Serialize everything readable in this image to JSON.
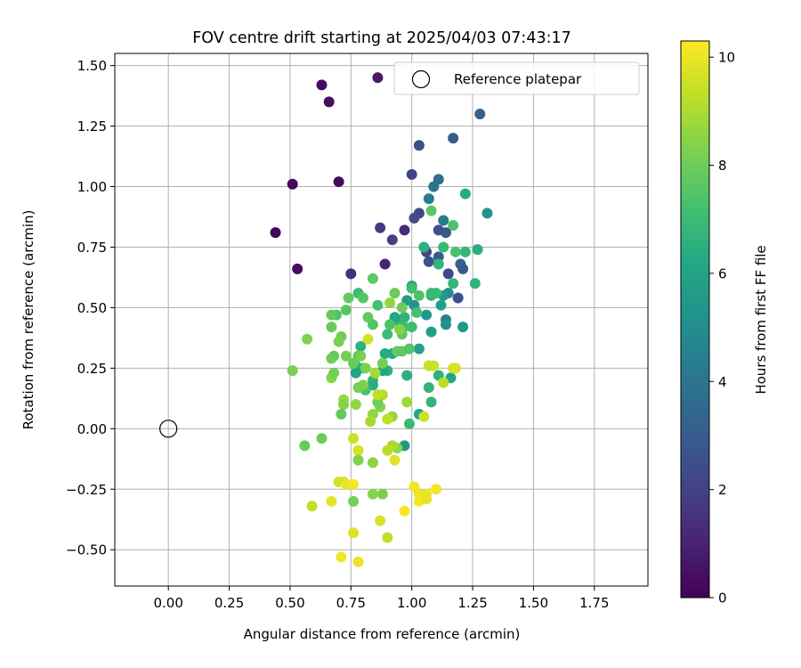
{
  "chart_data": {
    "type": "scatter",
    "title": "FOV centre drift starting at 2025/04/03 07:43:17",
    "xlabel": "Angular distance from reference (arcmin)",
    "ylabel": "Rotation from reference (arcmin)",
    "xlim": [
      -0.22,
      1.97
    ],
    "ylim": [
      -0.65,
      1.55
    ],
    "xticks": [
      "0.00",
      "0.25",
      "0.50",
      "0.75",
      "1.00",
      "1.25",
      "1.50",
      "1.75"
    ],
    "yticks": [
      "−0.50",
      "−0.25",
      "0.00",
      "0.25",
      "0.50",
      "0.75",
      "1.00",
      "1.25",
      "1.50"
    ],
    "grid": true,
    "legend": {
      "position": "top-right",
      "label": "Reference platepar"
    },
    "reference_point": {
      "x": 0.0,
      "y": 0.0
    },
    "colorbar": {
      "label": "Hours from first FF file",
      "range": [
        0,
        10.3
      ],
      "ticks": [
        "0",
        "2",
        "4",
        "6",
        "8",
        "10"
      ],
      "colormap": "viridis"
    },
    "points": [
      {
        "x": 0.63,
        "y": 1.42,
        "h": 0.3
      },
      {
        "x": 0.66,
        "y": 1.35,
        "h": 0.4
      },
      {
        "x": 0.86,
        "y": 1.45,
        "h": 0.7
      },
      {
        "x": 0.7,
        "y": 1.02,
        "h": 0.3
      },
      {
        "x": 0.51,
        "y": 1.01,
        "h": 0.2
      },
      {
        "x": 0.44,
        "y": 0.81,
        "h": 0.1
      },
      {
        "x": 0.53,
        "y": 0.66,
        "h": 0.3
      },
      {
        "x": 0.89,
        "y": 0.68,
        "h": 1.0
      },
      {
        "x": 0.75,
        "y": 0.64,
        "h": 1.4
      },
      {
        "x": 0.97,
        "y": 0.82,
        "h": 1.2
      },
      {
        "x": 0.87,
        "y": 0.83,
        "h": 1.8
      },
      {
        "x": 0.92,
        "y": 0.78,
        "h": 2.0
      },
      {
        "x": 1.28,
        "y": 1.3,
        "h": 3.2
      },
      {
        "x": 1.17,
        "y": 1.2,
        "h": 3.0
      },
      {
        "x": 1.03,
        "y": 1.17,
        "h": 2.5
      },
      {
        "x": 1.0,
        "y": 1.05,
        "h": 2.1
      },
      {
        "x": 1.11,
        "y": 1.03,
        "h": 3.7
      },
      {
        "x": 1.09,
        "y": 1.0,
        "h": 4.0
      },
      {
        "x": 1.07,
        "y": 0.95,
        "h": 4.3
      },
      {
        "x": 1.03,
        "y": 0.89,
        "h": 2.2
      },
      {
        "x": 1.01,
        "y": 0.87,
        "h": 2.4
      },
      {
        "x": 1.13,
        "y": 0.86,
        "h": 4.2
      },
      {
        "x": 1.11,
        "y": 0.82,
        "h": 2.6
      },
      {
        "x": 1.14,
        "y": 0.81,
        "h": 2.8
      },
      {
        "x": 1.06,
        "y": 0.73,
        "h": 2.3
      },
      {
        "x": 1.07,
        "y": 0.69,
        "h": 2.6
      },
      {
        "x": 1.11,
        "y": 0.71,
        "h": 3.0
      },
      {
        "x": 1.2,
        "y": 0.68,
        "h": 3.1
      },
      {
        "x": 1.21,
        "y": 0.66,
        "h": 2.9
      },
      {
        "x": 1.15,
        "y": 0.64,
        "h": 2.2
      },
      {
        "x": 1.19,
        "y": 0.54,
        "h": 2.5
      },
      {
        "x": 1.31,
        "y": 0.89,
        "h": 5.2
      },
      {
        "x": 1.22,
        "y": 0.97,
        "h": 6.3
      },
      {
        "x": 1.27,
        "y": 0.74,
        "h": 6.4
      },
      {
        "x": 1.22,
        "y": 0.73,
        "h": 6.8
      },
      {
        "x": 1.18,
        "y": 0.73,
        "h": 7.3
      },
      {
        "x": 1.26,
        "y": 0.6,
        "h": 6.6
      },
      {
        "x": 1.17,
        "y": 0.6,
        "h": 6.8
      },
      {
        "x": 1.17,
        "y": 0.84,
        "h": 7.4
      },
      {
        "x": 1.08,
        "y": 0.9,
        "h": 7.6
      },
      {
        "x": 1.05,
        "y": 0.75,
        "h": 6.5
      },
      {
        "x": 1.13,
        "y": 0.75,
        "h": 6.9
      },
      {
        "x": 1.11,
        "y": 0.68,
        "h": 6.7
      },
      {
        "x": 1.15,
        "y": 0.56,
        "h": 5.0
      },
      {
        "x": 1.13,
        "y": 0.55,
        "h": 5.5
      },
      {
        "x": 1.14,
        "y": 0.45,
        "h": 4.5
      },
      {
        "x": 1.14,
        "y": 0.43,
        "h": 5.2
      },
      {
        "x": 1.21,
        "y": 0.42,
        "h": 5.6
      },
      {
        "x": 1.08,
        "y": 0.4,
        "h": 5.8
      },
      {
        "x": 1.03,
        "y": 0.33,
        "h": 5.9
      },
      {
        "x": 1.0,
        "y": 0.59,
        "h": 6.0
      },
      {
        "x": 1.01,
        "y": 0.51,
        "h": 5.2
      },
      {
        "x": 1.03,
        "y": 0.55,
        "h": 7.4
      },
      {
        "x": 1.06,
        "y": 0.47,
        "h": 5.4
      },
      {
        "x": 1.08,
        "y": 0.55,
        "h": 6.6
      },
      {
        "x": 1.1,
        "y": 0.56,
        "h": 7.0
      },
      {
        "x": 1.12,
        "y": 0.51,
        "h": 5.8
      },
      {
        "x": 1.0,
        "y": 0.42,
        "h": 7.0
      },
      {
        "x": 0.98,
        "y": 0.53,
        "h": 5.7
      },
      {
        "x": 0.97,
        "y": 0.46,
        "h": 6.6
      },
      {
        "x": 0.97,
        "y": 0.42,
        "h": 7.3
      },
      {
        "x": 0.95,
        "y": 0.44,
        "h": 6.8
      },
      {
        "x": 0.93,
        "y": 0.46,
        "h": 6.1
      },
      {
        "x": 0.91,
        "y": 0.43,
        "h": 7.4
      },
      {
        "x": 0.9,
        "y": 0.39,
        "h": 7.0
      },
      {
        "x": 0.92,
        "y": 0.31,
        "h": 6.2
      },
      {
        "x": 0.89,
        "y": 0.31,
        "h": 6.3
      },
      {
        "x": 0.9,
        "y": 0.24,
        "h": 6.6
      },
      {
        "x": 0.88,
        "y": 0.24,
        "h": 6.0
      },
      {
        "x": 0.84,
        "y": 0.2,
        "h": 6.9
      },
      {
        "x": 0.84,
        "y": 0.18,
        "h": 6.4
      },
      {
        "x": 0.81,
        "y": 0.16,
        "h": 7.3
      },
      {
        "x": 0.79,
        "y": 0.34,
        "h": 6.6
      },
      {
        "x": 0.78,
        "y": 0.3,
        "h": 7.6
      },
      {
        "x": 0.77,
        "y": 0.26,
        "h": 6.8
      },
      {
        "x": 0.8,
        "y": 0.25,
        "h": 6.4
      },
      {
        "x": 0.77,
        "y": 0.23,
        "h": 6.1
      },
      {
        "x": 0.78,
        "y": 0.56,
        "h": 7.0
      },
      {
        "x": 0.74,
        "y": 0.54,
        "h": 7.8
      },
      {
        "x": 0.8,
        "y": 0.54,
        "h": 7.5
      },
      {
        "x": 0.84,
        "y": 0.62,
        "h": 7.7
      },
      {
        "x": 0.86,
        "y": 0.51,
        "h": 7.2
      },
      {
        "x": 0.82,
        "y": 0.46,
        "h": 7.8
      },
      {
        "x": 0.84,
        "y": 0.43,
        "h": 7.5
      },
      {
        "x": 0.73,
        "y": 0.49,
        "h": 7.6
      },
      {
        "x": 0.69,
        "y": 0.47,
        "h": 7.4
      },
      {
        "x": 0.67,
        "y": 0.47,
        "h": 7.8
      },
      {
        "x": 0.67,
        "y": 0.42,
        "h": 7.9
      },
      {
        "x": 0.71,
        "y": 0.38,
        "h": 8.0
      },
      {
        "x": 0.7,
        "y": 0.36,
        "h": 8.2
      },
      {
        "x": 0.68,
        "y": 0.3,
        "h": 7.8
      },
      {
        "x": 0.67,
        "y": 0.29,
        "h": 8.0
      },
      {
        "x": 0.73,
        "y": 0.3,
        "h": 8.1
      },
      {
        "x": 0.76,
        "y": 0.27,
        "h": 7.9
      },
      {
        "x": 0.79,
        "y": 0.3,
        "h": 8.2
      },
      {
        "x": 0.81,
        "y": 0.25,
        "h": 8.3
      },
      {
        "x": 0.88,
        "y": 0.27,
        "h": 8.1
      },
      {
        "x": 0.94,
        "y": 0.32,
        "h": 7.9
      },
      {
        "x": 0.96,
        "y": 0.32,
        "h": 7.7
      },
      {
        "x": 0.99,
        "y": 0.33,
        "h": 7.5
      },
      {
        "x": 0.96,
        "y": 0.39,
        "h": 7.8
      },
      {
        "x": 0.95,
        "y": 0.41,
        "h": 8.4
      },
      {
        "x": 0.91,
        "y": 0.52,
        "h": 8.6
      },
      {
        "x": 0.93,
        "y": 0.56,
        "h": 7.9
      },
      {
        "x": 0.96,
        "y": 0.5,
        "h": 8.0
      },
      {
        "x": 1.0,
        "y": 0.58,
        "h": 7.1
      },
      {
        "x": 1.02,
        "y": 0.48,
        "h": 7.2
      },
      {
        "x": 1.08,
        "y": 0.56,
        "h": 6.9
      },
      {
        "x": 0.98,
        "y": 0.22,
        "h": 6.5
      },
      {
        "x": 1.07,
        "y": 0.17,
        "h": 6.7
      },
      {
        "x": 1.11,
        "y": 0.22,
        "h": 6.6
      },
      {
        "x": 1.16,
        "y": 0.21,
        "h": 6.0
      },
      {
        "x": 1.08,
        "y": 0.11,
        "h": 6.7
      },
      {
        "x": 1.03,
        "y": 0.06,
        "h": 6.1
      },
      {
        "x": 0.99,
        "y": 0.02,
        "h": 6.9
      },
      {
        "x": 0.97,
        "y": -0.07,
        "h": 5.5
      },
      {
        "x": 0.94,
        "y": -0.08,
        "h": 8.5
      },
      {
        "x": 0.92,
        "y": -0.07,
        "h": 9.0
      },
      {
        "x": 0.9,
        "y": -0.09,
        "h": 9.2
      },
      {
        "x": 0.92,
        "y": 0.05,
        "h": 8.7
      },
      {
        "x": 0.9,
        "y": 0.04,
        "h": 9.3
      },
      {
        "x": 0.88,
        "y": 0.14,
        "h": 9.1
      },
      {
        "x": 0.87,
        "y": 0.09,
        "h": 8.4
      },
      {
        "x": 0.86,
        "y": 0.11,
        "h": 8.0
      },
      {
        "x": 0.84,
        "y": 0.06,
        "h": 8.6
      },
      {
        "x": 0.83,
        "y": 0.03,
        "h": 8.9
      },
      {
        "x": 0.8,
        "y": 0.18,
        "h": 8.3
      },
      {
        "x": 0.78,
        "y": 0.17,
        "h": 8.1
      },
      {
        "x": 0.77,
        "y": 0.1,
        "h": 8.6
      },
      {
        "x": 0.72,
        "y": 0.12,
        "h": 8.7
      },
      {
        "x": 0.72,
        "y": 0.1,
        "h": 8.4
      },
      {
        "x": 0.71,
        "y": 0.06,
        "h": 7.8
      },
      {
        "x": 0.67,
        "y": 0.21,
        "h": 8.4
      },
      {
        "x": 0.68,
        "y": 0.23,
        "h": 8.1
      },
      {
        "x": 0.51,
        "y": 0.24,
        "h": 8.2
      },
      {
        "x": 0.57,
        "y": 0.37,
        "h": 8.3
      },
      {
        "x": 0.56,
        "y": -0.07,
        "h": 7.9
      },
      {
        "x": 0.63,
        "y": -0.04,
        "h": 8.0
      },
      {
        "x": 0.76,
        "y": -0.04,
        "h": 9.5
      },
      {
        "x": 0.78,
        "y": -0.09,
        "h": 9.6
      },
      {
        "x": 0.78,
        "y": -0.13,
        "h": 8.3
      },
      {
        "x": 0.84,
        "y": -0.14,
        "h": 8.5
      },
      {
        "x": 0.88,
        "y": -0.27,
        "h": 8.2
      },
      {
        "x": 0.84,
        "y": -0.27,
        "h": 8.4
      },
      {
        "x": 0.76,
        "y": -0.3,
        "h": 8.1
      },
      {
        "x": 0.72,
        "y": -0.22,
        "h": 9.7
      },
      {
        "x": 0.7,
        "y": -0.22,
        "h": 9.6
      },
      {
        "x": 0.73,
        "y": -0.23,
        "h": 10.0
      },
      {
        "x": 0.76,
        "y": -0.23,
        "h": 10.2
      },
      {
        "x": 0.67,
        "y": -0.3,
        "h": 9.9
      },
      {
        "x": 0.59,
        "y": -0.32,
        "h": 9.4
      },
      {
        "x": 0.76,
        "y": -0.43,
        "h": 9.8
      },
      {
        "x": 0.71,
        "y": -0.53,
        "h": 10.1
      },
      {
        "x": 0.78,
        "y": -0.55,
        "h": 10.0
      },
      {
        "x": 0.87,
        "y": -0.38,
        "h": 9.7
      },
      {
        "x": 0.9,
        "y": -0.45,
        "h": 9.3
      },
      {
        "x": 0.97,
        "y": -0.34,
        "h": 10.2
      },
      {
        "x": 1.01,
        "y": -0.24,
        "h": 10.1
      },
      {
        "x": 1.03,
        "y": -0.27,
        "h": 10.0
      },
      {
        "x": 1.03,
        "y": -0.3,
        "h": 10.2
      },
      {
        "x": 1.06,
        "y": -0.29,
        "h": 9.9
      },
      {
        "x": 1.06,
        "y": -0.27,
        "h": 10.0
      },
      {
        "x": 1.1,
        "y": -0.25,
        "h": 10.1
      },
      {
        "x": 0.93,
        "y": -0.13,
        "h": 9.8
      },
      {
        "x": 1.05,
        "y": 0.05,
        "h": 9.5
      },
      {
        "x": 1.07,
        "y": 0.26,
        "h": 9.4
      },
      {
        "x": 1.09,
        "y": 0.26,
        "h": 9.5
      },
      {
        "x": 1.13,
        "y": 0.19,
        "h": 9.2
      },
      {
        "x": 1.17,
        "y": 0.25,
        "h": 9.6
      },
      {
        "x": 1.18,
        "y": 0.25,
        "h": 9.7
      },
      {
        "x": 0.82,
        "y": 0.37,
        "h": 9.6
      },
      {
        "x": 0.86,
        "y": 0.14,
        "h": 9.3
      },
      {
        "x": 0.98,
        "y": 0.11,
        "h": 8.8
      },
      {
        "x": 0.85,
        "y": 0.23,
        "h": 8.9
      }
    ]
  }
}
